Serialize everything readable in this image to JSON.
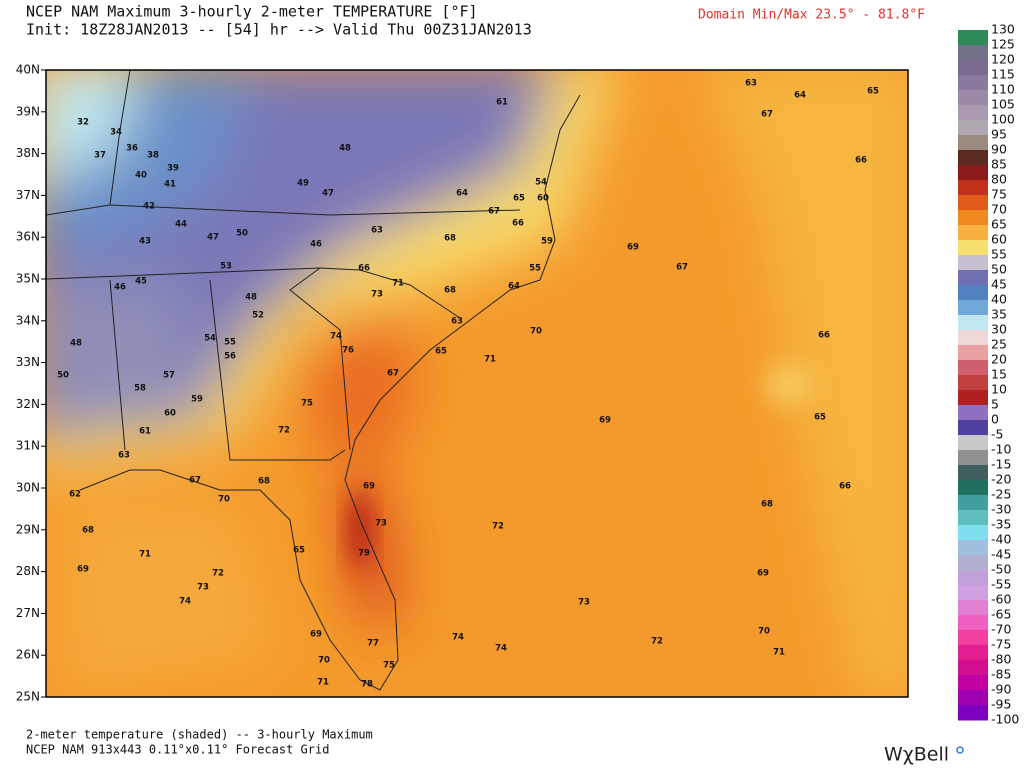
{
  "header": {
    "title": "NCEP NAM Maximum 3-hourly 2-meter TEMPERATURE [°F]",
    "subtitle": "Init: 18Z28JAN2013 -- [54] hr --> Valid Thu 00Z31JAN2013",
    "domain": "Domain Min/Max  23.5° -  81.8°F"
  },
  "map": {
    "lat_labels": [
      "40N",
      "39N",
      "38N",
      "37N",
      "36N",
      "35N",
      "34N",
      "33N",
      "32N",
      "31N",
      "30N",
      "29N",
      "28N",
      "27N",
      "26N",
      "25N"
    ],
    "stations": [
      32,
      34,
      36,
      38,
      37,
      39,
      40,
      41,
      42,
      44,
      47,
      50,
      43,
      53,
      46,
      45,
      48,
      52,
      54,
      55,
      56,
      48,
      50,
      57,
      58,
      59,
      60,
      61,
      63,
      67,
      70,
      68,
      62,
      68,
      71,
      69,
      72,
      73,
      74,
      65,
      69,
      70,
      71,
      77,
      75,
      78,
      74,
      74,
      79,
      73,
      69,
      72,
      75,
      74,
      76,
      73,
      71,
      66,
      68,
      63,
      65,
      67,
      71,
      70,
      64,
      55,
      59,
      66,
      63,
      68,
      67,
      64,
      65,
      60,
      54,
      49,
      47,
      48,
      46,
      61,
      63,
      64,
      65,
      67,
      66,
      69,
      67,
      66,
      69,
      65,
      66,
      68,
      72,
      69,
      73,
      72,
      70,
      71
    ]
  },
  "colorbar": {
    "labels": [
      130,
      125,
      120,
      115,
      110,
      105,
      100,
      95,
      90,
      85,
      80,
      75,
      70,
      65,
      60,
      55,
      50,
      45,
      40,
      35,
      30,
      25,
      20,
      15,
      10,
      5,
      0,
      -5,
      -10,
      -15,
      -20,
      -25,
      -30,
      -35,
      -40,
      -45,
      -50,
      -55,
      -60,
      -65,
      -70,
      -75,
      -80,
      -85,
      -90,
      -95,
      -100
    ]
  },
  "footer": {
    "line1": "2-meter temperature (shaded) -- 3-hourly Maximum",
    "line2": "NCEP NAM 913x443 0.11°x0.11° Forecast Grid",
    "logo": "WχBell"
  }
}
